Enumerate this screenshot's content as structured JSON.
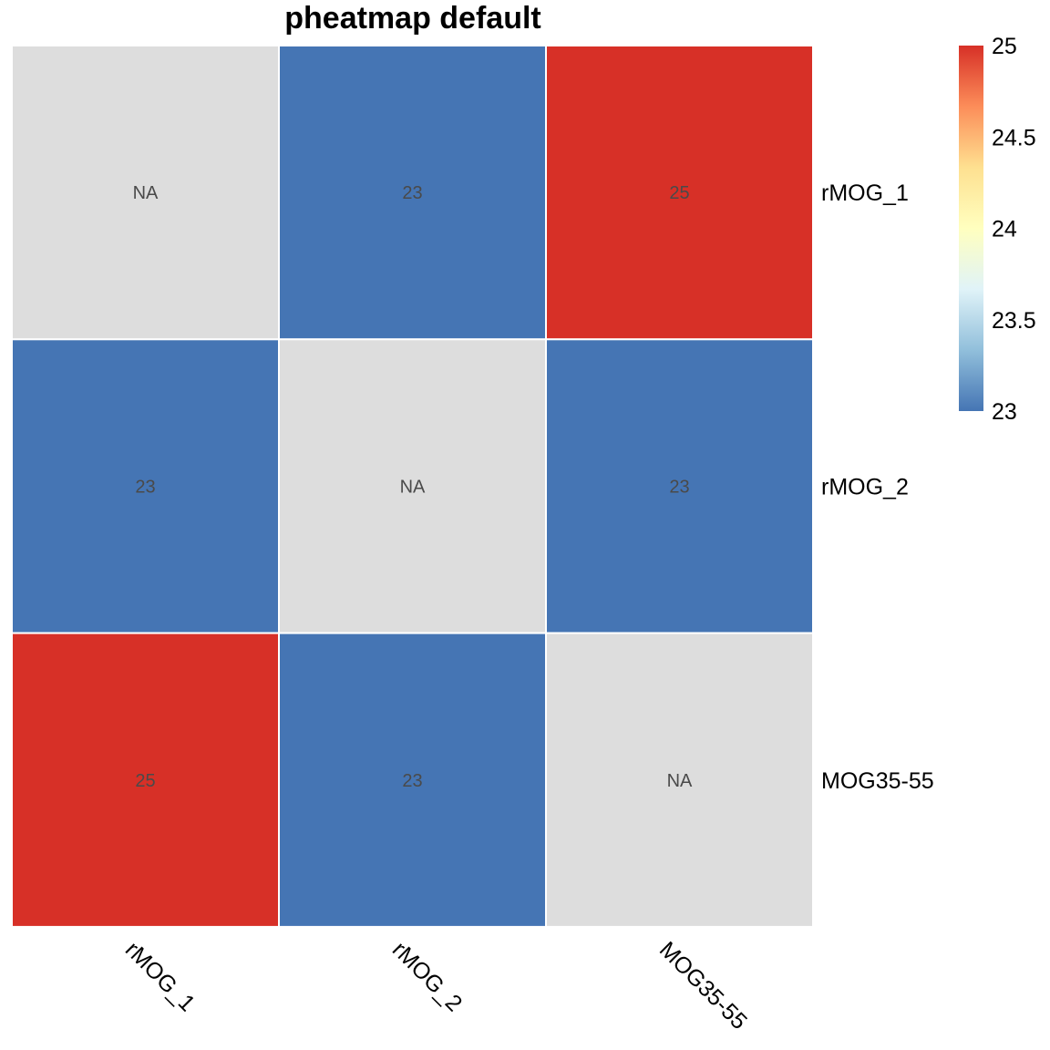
{
  "chart_data": {
    "type": "heatmap",
    "title": "pheatmap default",
    "rows": [
      "rMOG_1",
      "rMOG_2",
      "MOG35-55"
    ],
    "columns": [
      "rMOG_1",
      "rMOG_2",
      "MOG35-55"
    ],
    "values": [
      [
        null,
        23,
        25
      ],
      [
        23,
        null,
        23
      ],
      [
        25,
        23,
        null
      ]
    ],
    "cell_labels": [
      [
        "NA",
        "23",
        "25"
      ],
      [
        "23",
        "NA",
        "23"
      ],
      [
        "25",
        "23",
        "NA"
      ]
    ],
    "na_color": "#dddddd",
    "color_scale": {
      "min": 23,
      "max": 25,
      "stops": [
        "#4575b4",
        "#91bfdb",
        "#e0f3f8",
        "#ffffbf",
        "#fee090",
        "#fc8d59",
        "#d73027"
      ]
    },
    "legend": {
      "position": "top-right",
      "ticks": [
        "25",
        "24.5",
        "24",
        "23.5",
        "23"
      ],
      "tick_values": [
        25,
        24.5,
        24,
        23.5,
        23
      ]
    }
  }
}
